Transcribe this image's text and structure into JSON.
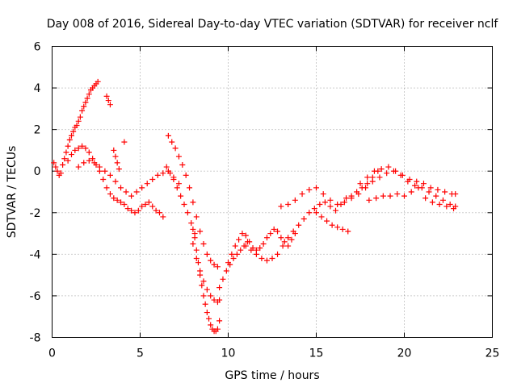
{
  "colors": {
    "series": "#ff0000",
    "axis": "#000000",
    "grid": "#9a9a9a",
    "background": "#ffffff"
  },
  "chart_data": {
    "type": "scatter",
    "title": "Day 008 of 2016, Sidereal Day-to-day VTEC variation (SDTVAR) for receiver nclf",
    "xlabel": "GPS time / hours",
    "ylabel": "SDTVAR / TECUs",
    "xlim": [
      0,
      25
    ],
    "ylim": [
      -8,
      6
    ],
    "xticks": [
      0,
      5,
      10,
      15,
      20,
      25
    ],
    "yticks": [
      -8,
      -6,
      -4,
      -2,
      0,
      2,
      4,
      6
    ],
    "xtick_labels": [
      "0",
      "5",
      "10",
      "15",
      "20",
      "25"
    ],
    "ytick_labels": [
      "-8",
      "-6",
      "-4",
      "-2",
      "0",
      "2",
      "4",
      "6"
    ],
    "grid": true,
    "marker": "plus",
    "series": [
      {
        "name": "SDTVAR",
        "x": [
          0.1,
          0.2,
          0.3,
          0.4,
          0.5,
          0.6,
          0.7,
          0.8,
          0.9,
          1.0,
          1.1,
          1.2,
          1.3,
          1.4,
          1.5,
          1.6,
          1.7,
          1.8,
          1.9,
          2.0,
          2.1,
          2.2,
          2.3,
          2.4,
          2.5,
          2.6,
          3.1,
          3.2,
          3.3,
          0.9,
          1.1,
          1.3,
          1.5,
          1.7,
          1.9,
          2.1,
          2.3,
          2.5,
          2.7,
          2.9,
          3.1,
          3.3,
          3.5,
          3.7,
          3.9,
          4.1,
          4.3,
          4.5,
          4.7,
          4.9,
          5.1,
          5.3,
          5.5,
          5.7,
          5.9,
          6.1,
          6.3,
          1.5,
          1.8,
          2.1,
          2.4,
          2.7,
          3.0,
          3.3,
          3.6,
          3.9,
          4.2,
          4.5,
          4.8,
          5.1,
          5.4,
          5.7,
          6.0,
          6.3,
          6.6,
          6.9,
          7.2,
          3.5,
          3.6,
          3.7,
          3.8,
          4.1,
          6.6,
          6.8,
          7.0,
          7.2,
          7.4,
          7.6,
          7.8,
          8.0,
          8.2,
          8.4,
          8.6,
          8.8,
          9.0,
          9.2,
          9.4,
          6.5,
          6.7,
          6.9,
          7.1,
          7.3,
          7.5,
          7.7,
          7.9,
          8.1,
          8.0,
          8.1,
          8.2,
          8.3,
          8.4,
          8.5,
          8.6,
          8.7,
          8.8,
          8.9,
          9.0,
          9.1,
          9.2,
          9.3,
          9.4,
          9.5,
          8.0,
          8.2,
          8.4,
          8.6,
          8.8,
          9.0,
          9.2,
          9.4,
          9.5,
          9.5,
          9.7,
          9.9,
          10.1,
          10.3,
          10.5,
          10.7,
          10.9,
          11.1,
          10.0,
          10.2,
          10.4,
          10.6,
          10.8,
          11.0,
          11.2,
          11.4,
          11.6,
          11.8,
          12.0,
          12.2,
          12.4,
          12.6,
          12.8,
          13.0,
          13.2,
          13.4,
          13.6,
          13.8,
          11.0,
          11.3,
          11.6,
          11.9,
          12.2,
          12.5,
          12.8,
          13.1,
          13.4,
          13.7,
          14.0,
          14.3,
          14.6,
          14.9,
          15.2,
          15.5,
          15.8,
          16.1,
          16.4,
          16.7,
          17.0,
          17.3,
          17.6,
          17.9,
          18.2,
          18.5,
          13.0,
          13.4,
          13.8,
          14.2,
          14.6,
          15.0,
          15.4,
          15.8,
          16.2,
          16.6,
          17.0,
          17.4,
          17.8,
          18.2,
          18.6,
          19.0,
          19.4,
          19.8,
          20.2,
          20.6,
          21.0,
          21.4,
          21.8,
          22.2,
          22.6,
          22.9,
          17.5,
          17.9,
          18.3,
          18.7,
          19.1,
          19.5,
          19.9,
          20.3,
          20.7,
          21.1,
          21.5,
          21.9,
          22.3,
          22.7,
          22.9,
          18.0,
          18.4,
          18.8,
          19.2,
          19.6,
          20.0,
          20.4,
          20.8,
          21.2,
          21.6,
          22.0,
          22.4,
          22.8,
          15.0,
          15.3,
          15.6,
          15.9,
          16.2,
          16.5,
          16.8
        ],
        "y": [
          0.4,
          0.2,
          0.0,
          -0.2,
          -0.1,
          0.3,
          0.6,
          0.9,
          1.2,
          1.5,
          1.7,
          1.9,
          2.1,
          2.2,
          2.4,
          2.6,
          2.9,
          3.1,
          3.3,
          3.5,
          3.7,
          3.9,
          4.0,
          4.1,
          4.2,
          4.3,
          3.6,
          3.4,
          3.2,
          0.5,
          0.8,
          1.0,
          1.1,
          1.2,
          1.1,
          0.9,
          0.6,
          0.3,
          0.0,
          -0.4,
          -0.8,
          -1.1,
          -1.3,
          -1.4,
          -1.5,
          -1.6,
          -1.8,
          -1.9,
          -2.0,
          -1.9,
          -1.7,
          -1.6,
          -1.5,
          -1.7,
          -1.9,
          -2.0,
          -2.2,
          0.2,
          0.4,
          0.5,
          0.4,
          0.2,
          0.0,
          -0.2,
          -0.5,
          -0.8,
          -1.0,
          -1.2,
          -1.0,
          -0.8,
          -0.6,
          -0.4,
          -0.2,
          -0.1,
          0.0,
          -0.3,
          -0.6,
          1.0,
          0.7,
          0.4,
          0.1,
          1.4,
          1.7,
          1.4,
          1.1,
          0.7,
          0.3,
          -0.2,
          -0.8,
          -1.5,
          -2.2,
          -2.9,
          -3.5,
          -4.0,
          -4.3,
          -4.5,
          -4.6,
          0.2,
          -0.1,
          -0.4,
          -0.8,
          -1.2,
          -1.6,
          -2.0,
          -2.5,
          -3.0,
          -2.8,
          -3.2,
          -3.8,
          -4.4,
          -5.0,
          -5.5,
          -6.0,
          -6.4,
          -6.8,
          -7.1,
          -7.4,
          -7.6,
          -7.7,
          -7.7,
          -7.6,
          -7.2,
          -3.5,
          -4.2,
          -4.8,
          -5.3,
          -5.7,
          -6.0,
          -6.2,
          -6.3,
          -6.2,
          -5.6,
          -5.2,
          -4.8,
          -4.5,
          -4.2,
          -4.0,
          -3.8,
          -3.6,
          -3.4,
          -4.4,
          -4.0,
          -3.6,
          -3.3,
          -3.0,
          -3.1,
          -3.4,
          -3.7,
          -3.8,
          -3.7,
          -3.5,
          -3.2,
          -3.0,
          -2.8,
          -2.9,
          -3.2,
          -3.4,
          -3.6,
          -3.3,
          -3.0,
          -3.6,
          -3.8,
          -4.0,
          -4.2,
          -4.3,
          -4.2,
          -4.0,
          -3.6,
          -3.2,
          -2.9,
          -2.6,
          -2.3,
          -2.0,
          -1.8,
          -1.6,
          -1.5,
          -1.7,
          -1.9,
          -1.6,
          -1.3,
          -1.2,
          -1.0,
          -0.8,
          -0.6,
          -0.3,
          0.0,
          -1.7,
          -1.6,
          -1.4,
          -1.1,
          -0.9,
          -0.8,
          -1.1,
          -1.4,
          -1.6,
          -1.5,
          -1.3,
          -1.1,
          -0.8,
          -0.5,
          -0.3,
          -0.1,
          0.0,
          -0.2,
          -0.5,
          -0.7,
          -0.8,
          -1.0,
          -1.2,
          -1.4,
          -1.6,
          -1.7,
          -0.6,
          -0.3,
          0.0,
          0.1,
          0.2,
          0.0,
          -0.2,
          -0.4,
          -0.5,
          -0.6,
          -0.8,
          -0.9,
          -1.0,
          -1.1,
          -1.1,
          -1.4,
          -1.3,
          -1.2,
          -1.2,
          -1.1,
          -1.2,
          -1.0,
          -0.8,
          -1.3,
          -1.5,
          -1.6,
          -1.7,
          -1.8,
          -2.0,
          -2.2,
          -2.4,
          -2.6,
          -2.7,
          -2.8,
          -2.9
        ]
      }
    ]
  }
}
